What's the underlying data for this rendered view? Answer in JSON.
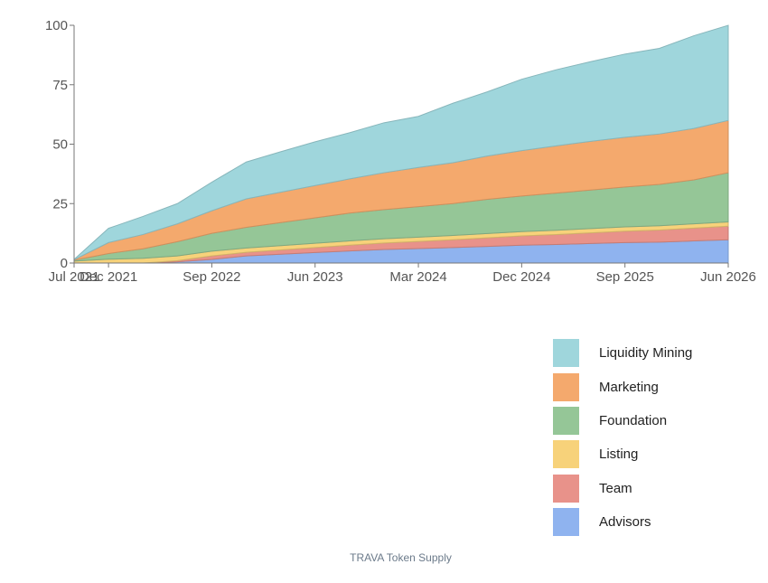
{
  "caption": "TRAVA Token Supply",
  "chart_data": {
    "type": "area",
    "stacked": true,
    "title": "",
    "xlabel": "",
    "ylabel": "",
    "ylim": [
      0,
      100
    ],
    "yticks": [
      0,
      25,
      50,
      75,
      100
    ],
    "x_ticks": [
      "Jul 2021",
      "Dec 2021",
      "Sep 2022",
      "Jun 2023",
      "Mar 2024",
      "Dec 2024",
      "Sep 2025",
      "Jun 2026"
    ],
    "x": [
      "Jul 2021",
      "Dec 2021",
      "Mar 2022",
      "Jun 2022",
      "Sep 2022",
      "Dec 2022",
      "Mar 2023",
      "Jun 2023",
      "Sep 2023",
      "Dec 2023",
      "Mar 2024",
      "Jun 2024",
      "Sep 2024",
      "Dec 2024",
      "Mar 2025",
      "Jun 2025",
      "Sep 2025",
      "Dec 2025",
      "Mar 2026",
      "Jun 2026"
    ],
    "legend_position": "bottom-right",
    "series": [
      {
        "name": "Advisors",
        "color": "#8fb3ef",
        "values": [
          0,
          0,
          0,
          0.5,
          1.5,
          3,
          3.7,
          4.4,
          5.1,
          5.7,
          6.1,
          6.5,
          7.0,
          7.5,
          7.8,
          8.2,
          8.6,
          8.8,
          9.3,
          9.8
        ]
      },
      {
        "name": "Team",
        "color": "#e8928a",
        "values": [
          0,
          0,
          0,
          0.5,
          1.5,
          1.5,
          1.8,
          2.1,
          2.4,
          2.7,
          3.0,
          3.3,
          3.6,
          3.9,
          4.2,
          4.5,
          4.8,
          5.1,
          5.4,
          5.7
        ]
      },
      {
        "name": "Listing",
        "color": "#f7d27a",
        "values": [
          0.8,
          1.6,
          2.0,
          2.0,
          2.0,
          1.8,
          1.8,
          1.8,
          1.8,
          1.8,
          1.8,
          1.8,
          1.8,
          1.8,
          1.8,
          1.8,
          1.8,
          1.8,
          1.8,
          1.8
        ]
      },
      {
        "name": "Foundation",
        "color": "#95c697",
        "values": [
          0.4,
          2.4,
          4.0,
          6.0,
          7.5,
          8.7,
          9.7,
          10.7,
          11.7,
          12.3,
          12.8,
          13.4,
          14.4,
          15.0,
          15.6,
          16.2,
          16.8,
          17.4,
          18.5,
          20.7
        ]
      },
      {
        "name": "Marketing",
        "color": "#f4a96d",
        "values": [
          0.2,
          4.6,
          6.0,
          7.5,
          9.5,
          12.0,
          12.8,
          13.6,
          14.4,
          15.5,
          16.5,
          17.2,
          18.2,
          19.1,
          19.9,
          20.5,
          20.9,
          21.2,
          21.6,
          22.0
        ]
      },
      {
        "name": "Liquidity Mining",
        "color": "#9fd6dc",
        "values": [
          0.1,
          6.0,
          7.6,
          8.5,
          12.0,
          15.5,
          17.0,
          18.4,
          19.4,
          21.0,
          21.5,
          25.0,
          27.0,
          30.0,
          32.0,
          33.5,
          35.0,
          36.0,
          39.0,
          40.0
        ]
      }
    ]
  }
}
